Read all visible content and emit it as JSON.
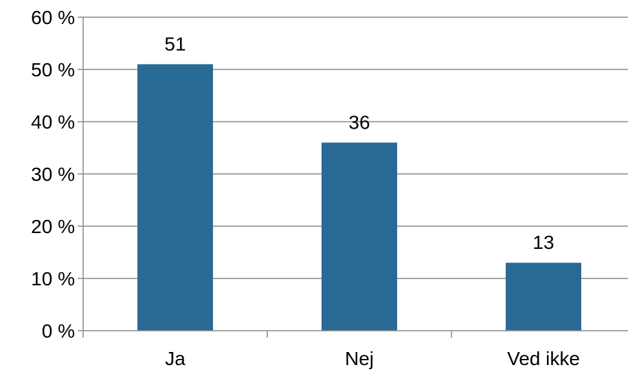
{
  "chart_data": {
    "type": "bar",
    "categories": [
      "Ja",
      "Nej",
      "Ved ikke"
    ],
    "values": [
      51,
      36,
      13
    ],
    "data_labels": [
      "51",
      "36",
      "13"
    ],
    "ylim": [
      0,
      60
    ],
    "y_ticks": [
      0,
      10,
      20,
      30,
      40,
      50,
      60
    ],
    "y_tick_labels": [
      "0 %",
      "10 %",
      "20 %",
      "30 %",
      "40 %",
      "50 %",
      "60 %"
    ],
    "title": "",
    "xlabel": "",
    "ylabel": "",
    "grid": true,
    "legend": "none",
    "bar_color": "#296a95",
    "grid_color": "#888888",
    "axis_color": "#888888"
  }
}
